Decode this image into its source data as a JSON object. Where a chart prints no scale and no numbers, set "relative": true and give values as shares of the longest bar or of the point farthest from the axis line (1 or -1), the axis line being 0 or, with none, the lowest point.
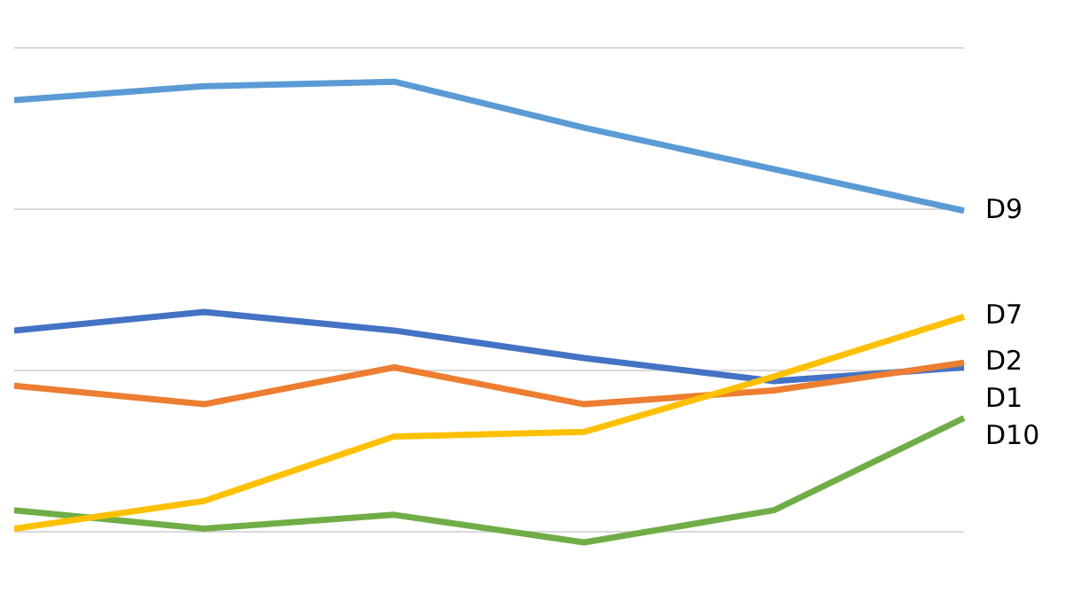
{
  "chart_data": {
    "type": "line",
    "relative": true,
    "grid": "y",
    "legend": false,
    "marker": "none",
    "line_style": "solid",
    "categories": [
      null,
      null,
      null,
      null,
      null,
      null
    ],
    "series": [
      {
        "name": "D9",
        "color": "#5b9bd5",
        "values": [
          0.96,
          0.99,
          1.0,
          0.9,
          0.81,
          0.72
        ]
      },
      {
        "name": "D7",
        "color": "#ffc000",
        "values": [
          0.03,
          0.09,
          0.23,
          0.24,
          0.36,
          0.49
        ]
      },
      {
        "name": "D2",
        "color": "#ed7d31",
        "values": [
          0.34,
          0.3,
          0.38,
          0.3,
          0.33,
          0.39
        ]
      },
      {
        "name": "D1",
        "color": "#4472c4",
        "values": [
          0.46,
          0.5,
          0.46,
          0.4,
          0.35,
          0.38
        ]
      },
      {
        "name": "D10",
        "color": "#70ad47",
        "values": [
          0.07,
          0.03,
          0.06,
          0.0,
          0.07,
          0.27
        ]
      }
    ]
  }
}
